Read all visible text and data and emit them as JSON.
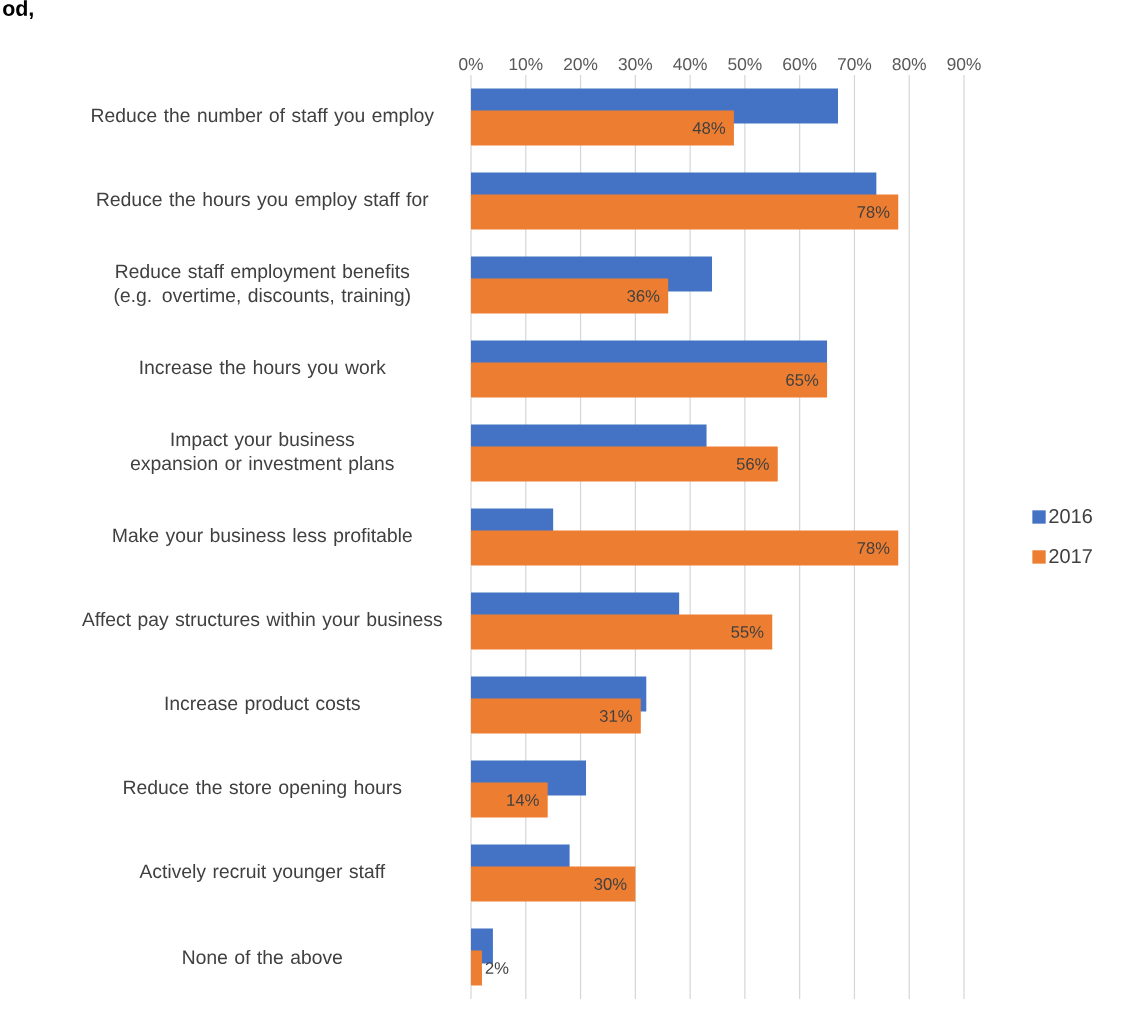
{
  "chart_data": {
    "type": "bar",
    "orientation": "horizontal",
    "title": "od,",
    "categories": [
      "Reduce the number of staff you employ",
      "Reduce the hours you employ staff for",
      "Reduce staff employment benefits (e.g. overtime, discounts, training)",
      "Increase the hours you work",
      "Impact your business expansion or investment plans",
      "Make your business less profitable",
      "Affect pay structures within your business",
      "Increase product costs",
      "Reduce the store opening hours",
      "Actively recruit younger staff",
      "None of the above"
    ],
    "series": [
      {
        "name": "2016",
        "color": "#4472c4",
        "values": [
          67,
          74,
          44,
          65,
          43,
          15,
          38,
          32,
          21,
          18,
          4
        ]
      },
      {
        "name": "2017",
        "color": "#ed7d31",
        "values": [
          48,
          78,
          36,
          65,
          56,
          78,
          55,
          31,
          14,
          30,
          2
        ],
        "value_labels": [
          "48%",
          "78%",
          "36%",
          "65%",
          "56%",
          "78%",
          "55%",
          "31%",
          "14%",
          "30%",
          "2%"
        ]
      }
    ],
    "xlim": [
      0,
      90
    ],
    "xticks": [
      {
        "value": 0,
        "label": "0%"
      },
      {
        "value": 10,
        "label": "10%"
      },
      {
        "value": 20,
        "label": "20%"
      },
      {
        "value": 30,
        "label": "30%"
      },
      {
        "value": 40,
        "label": "40%"
      },
      {
        "value": 50,
        "label": "50%"
      },
      {
        "value": 60,
        "label": "60%"
      },
      {
        "value": 70,
        "label": "70%"
      },
      {
        "value": 80,
        "label": "80%"
      },
      {
        "value": 90,
        "label": "90%"
      }
    ],
    "grid": "x",
    "legend": "right"
  }
}
